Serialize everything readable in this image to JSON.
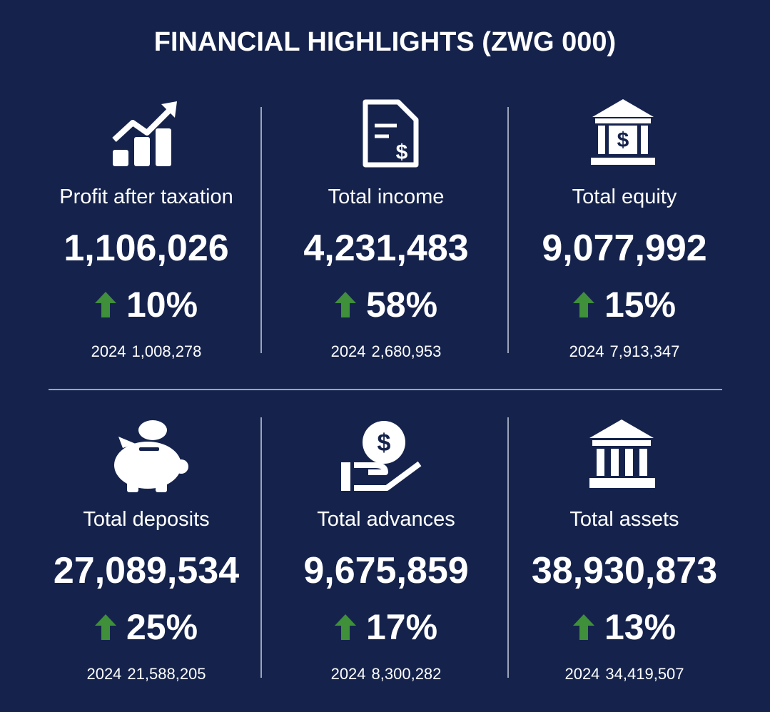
{
  "title": "FINANCIAL HIGHLIGHTS (ZWG 000)",
  "items": [
    {
      "label": "Profit after taxation",
      "value": "1,106,026",
      "change": "10%",
      "prior": {
        "year": "2024",
        "value": "1,008,278"
      }
    },
    {
      "label": "Total income",
      "value": "4,231,483",
      "change": "58%",
      "prior": {
        "year": "2024",
        "value": "2,680,953"
      }
    },
    {
      "label": "Total equity",
      "value": "9,077,992",
      "change": "15%",
      "prior": {
        "year": "2024",
        "value": "7,913,347"
      }
    },
    {
      "label": "Total deposits",
      "value": "27,089,534",
      "change": "25%",
      "prior": {
        "year": "2024",
        "value": "21,588,205"
      }
    },
    {
      "label": "Total advances",
      "value": "9,675,859",
      "change": "17%",
      "prior": {
        "year": "2024",
        "value": "8,300,282"
      }
    },
    {
      "label": "Total assets",
      "value": "38,930,873",
      "change": "13%",
      "prior": {
        "year": "2024",
        "value": "34,419,507"
      }
    }
  ]
}
